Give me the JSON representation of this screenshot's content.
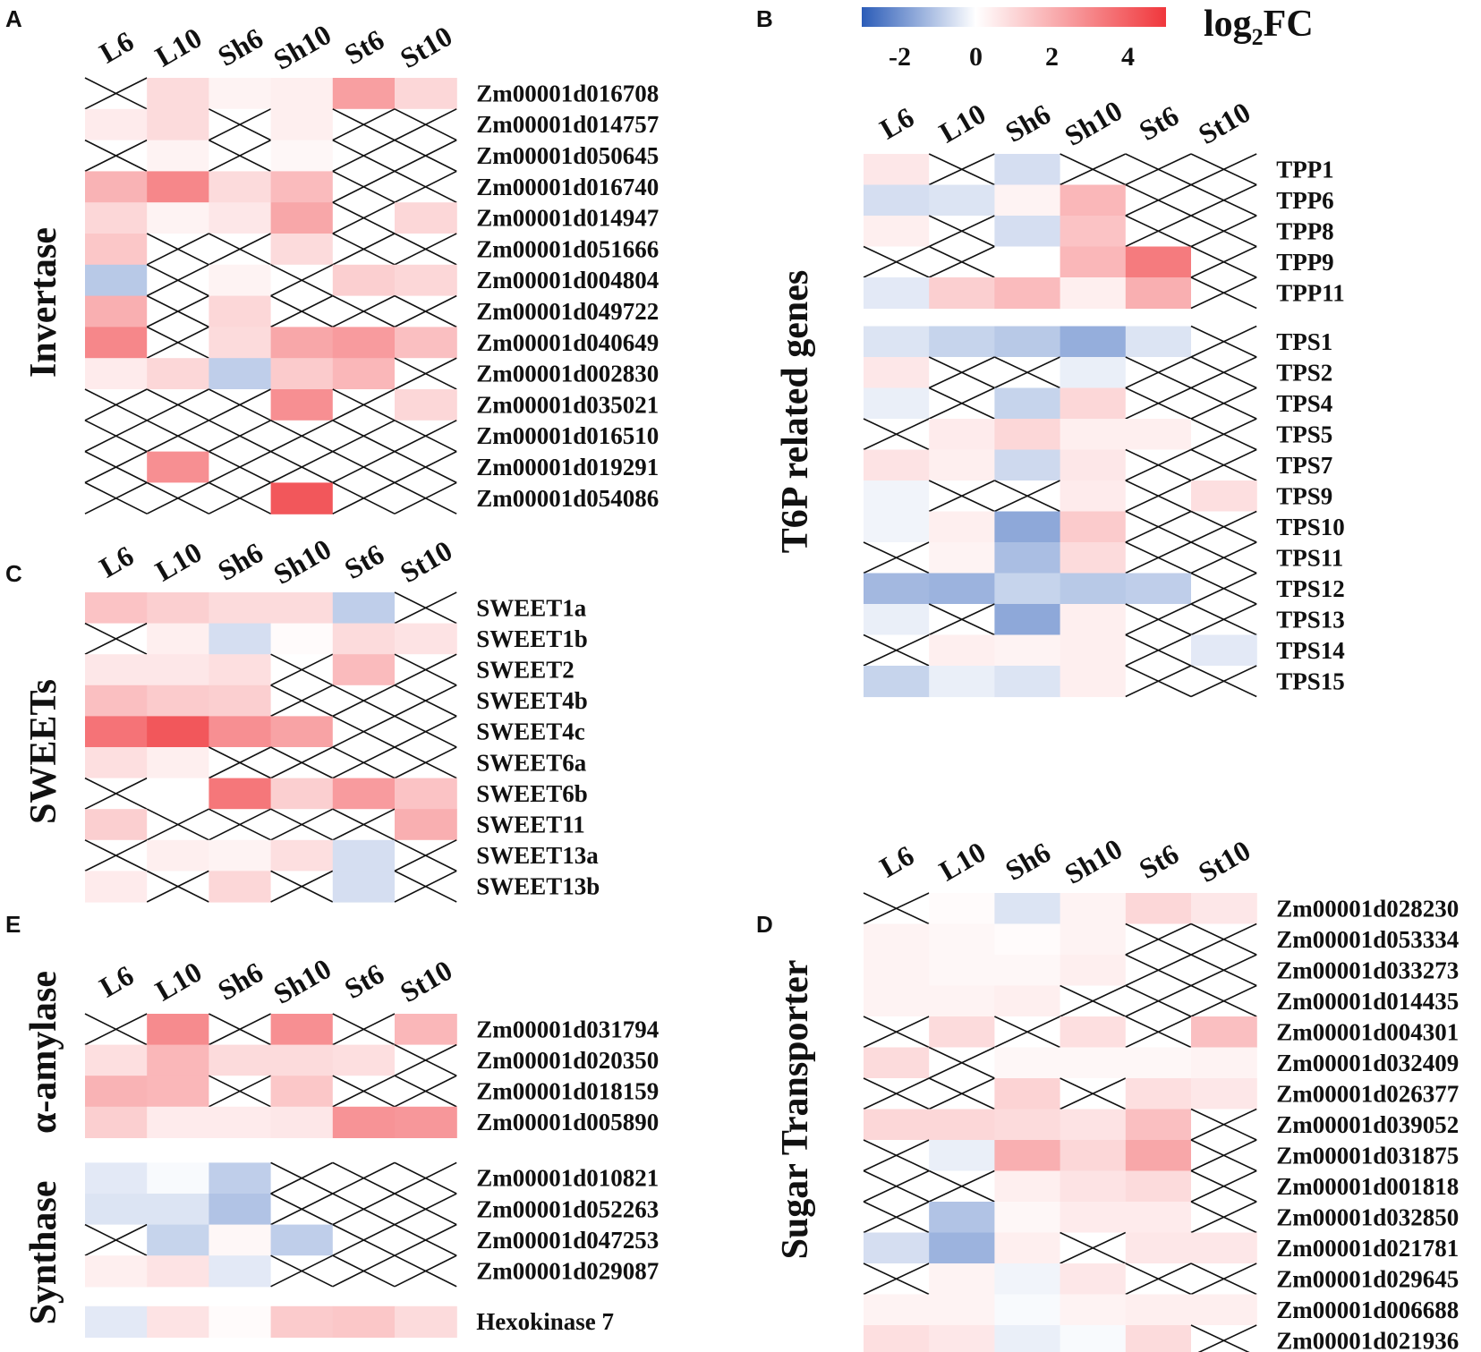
{
  "legend": {
    "title": "log",
    "title_sub": "2",
    "title_suffix": "FC",
    "ticks": [
      "-2",
      "0",
      "2",
      "4"
    ],
    "tick_values": [
      -2,
      0,
      2,
      4
    ],
    "range": [
      -3,
      5
    ],
    "colors": {
      "negative": "#2b5cb8",
      "zero": "#ffffff",
      "positive": "#f0373c"
    }
  },
  "chart_data": [
    {
      "type": "heatmap",
      "panel": "A",
      "title": "Invertase",
      "columns": [
        "L6",
        "L10",
        "Sh6",
        "Sh10",
        "St6",
        "St10"
      ],
      "groups": [
        {
          "rows": [
            "Zm00001d016708",
            "Zm00001d014757",
            "Zm00001d050645",
            "Zm00001d016740",
            "Zm00001d014947",
            "Zm00001d051666",
            "Zm00001d004804",
            "Zm00001d049722",
            "Zm00001d040649",
            "Zm00001d002830",
            "Zm00001d035021",
            "Zm00001d016510",
            "Zm00001d019291",
            "Zm00001d054086"
          ],
          "values": [
            [
              null,
              0.9,
              0.3,
              0.4,
              2.4,
              1.0
            ],
            [
              0.5,
              0.9,
              null,
              0.4,
              null,
              null
            ],
            [
              null,
              0.3,
              null,
              0.2,
              null,
              null
            ],
            [
              1.9,
              3.0,
              0.9,
              1.7,
              null,
              null
            ],
            [
              1.0,
              0.3,
              0.6,
              2.2,
              null,
              1.0
            ],
            [
              1.4,
              null,
              null,
              0.9,
              null,
              null
            ],
            [
              -1.0,
              null,
              0.3,
              null,
              1.2,
              1.0
            ],
            [
              2.0,
              null,
              1.0,
              null,
              null,
              null
            ],
            [
              3.0,
              null,
              0.9,
              2.2,
              2.5,
              1.6
            ],
            [
              0.5,
              1.0,
              -0.9,
              1.3,
              1.8,
              null
            ],
            [
              null,
              null,
              null,
              2.8,
              null,
              1.0
            ],
            [
              null,
              null,
              null,
              null,
              null,
              null
            ],
            [
              null,
              2.8,
              null,
              null,
              null,
              null
            ],
            [
              null,
              null,
              null,
              4.2,
              null,
              null
            ]
          ]
        }
      ]
    },
    {
      "type": "heatmap",
      "panel": "B",
      "title": "T6P related genes",
      "columns": [
        "L6",
        "L10",
        "Sh6",
        "Sh10",
        "St6",
        "St10"
      ],
      "groups": [
        {
          "rows": [
            "TPP1",
            "TPP6",
            "TPP8",
            "TPP9",
            "TPP11"
          ],
          "values": [
            [
              0.6,
              null,
              -0.6,
              null,
              null,
              null
            ],
            [
              -0.6,
              -0.5,
              0.3,
              1.8,
              null,
              null
            ],
            [
              0.4,
              null,
              -0.6,
              1.5,
              null,
              null
            ],
            [
              null,
              null,
              0.0,
              1.8,
              3.3,
              null
            ],
            [
              -0.4,
              1.2,
              1.7,
              0.4,
              2.0,
              null
            ]
          ]
        },
        {
          "rows": [
            "TPS1",
            "TPS2",
            "TPS4",
            "TPS5",
            "TPS7",
            "TPS9",
            "TPS10",
            "TPS11",
            "TPS12",
            "TPS13",
            "TPS14",
            "TPS15"
          ],
          "values": [
            [
              -0.5,
              -0.8,
              -1.0,
              -1.5,
              -0.5,
              null
            ],
            [
              0.6,
              null,
              null,
              -0.3,
              null,
              null
            ],
            [
              -0.3,
              null,
              -0.8,
              1.0,
              null,
              null
            ],
            [
              null,
              0.5,
              1.0,
              0.4,
              0.4,
              null
            ],
            [
              0.7,
              0.4,
              -0.7,
              0.6,
              null,
              null
            ],
            [
              -0.2,
              null,
              null,
              0.5,
              null,
              0.8
            ],
            [
              -0.2,
              0.4,
              -1.6,
              1.3,
              null,
              null
            ],
            [
              null,
              0.3,
              -1.2,
              0.9,
              null,
              null
            ],
            [
              -1.3,
              -1.4,
              -0.8,
              -1.0,
              -0.9,
              null
            ],
            [
              -0.3,
              null,
              -1.6,
              0.4,
              null,
              null
            ],
            [
              null,
              0.4,
              0.3,
              0.4,
              null,
              -0.4
            ],
            [
              -0.8,
              -0.3,
              -0.5,
              0.4,
              null,
              null
            ]
          ]
        }
      ]
    },
    {
      "type": "heatmap",
      "panel": "C",
      "title": "SWEETs",
      "columns": [
        "L6",
        "L10",
        "Sh6",
        "Sh10",
        "St6",
        "St10"
      ],
      "groups": [
        {
          "rows": [
            "SWEET1a",
            "SWEET1b",
            "SWEET2",
            "SWEET4b",
            "SWEET4c",
            "SWEET6a",
            "SWEET6b",
            "SWEET11",
            "SWEET13a",
            "SWEET13b"
          ],
          "values": [
            [
              1.5,
              1.2,
              0.9,
              0.9,
              -0.9,
              null
            ],
            [
              null,
              0.4,
              -0.6,
              0.1,
              0.9,
              0.7
            ],
            [
              0.6,
              0.6,
              0.8,
              null,
              1.7,
              null
            ],
            [
              1.6,
              1.3,
              1.2,
              null,
              null,
              null
            ],
            [
              3.5,
              4.2,
              2.8,
              2.3,
              null,
              null
            ],
            [
              0.8,
              0.4,
              null,
              null,
              null,
              null
            ],
            [
              null,
              0.0,
              3.4,
              1.2,
              2.5,
              1.5
            ],
            [
              1.2,
              null,
              null,
              null,
              null,
              2.0
            ],
            [
              null,
              0.4,
              0.3,
              0.8,
              -0.6,
              null
            ],
            [
              0.5,
              null,
              1.0,
              null,
              -0.6,
              null
            ]
          ]
        }
      ]
    },
    {
      "type": "heatmap",
      "panel": "E",
      "title": "α-amylase / Synthase",
      "columns": [
        "L6",
        "L10",
        "Sh6",
        "Sh10",
        "St6",
        "St10"
      ],
      "groups": [
        {
          "label": "α-amylase",
          "rows": [
            "Zm00001d031794",
            "Zm00001d020350",
            "Zm00001d018159",
            "Zm00001d005890"
          ],
          "values": [
            [
              null,
              2.9,
              null,
              2.8,
              null,
              1.8
            ],
            [
              0.8,
              1.8,
              0.9,
              0.9,
              0.8,
              null
            ],
            [
              1.9,
              1.8,
              null,
              1.4,
              null,
              null
            ],
            [
              1.2,
              0.5,
              0.5,
              0.6,
              2.7,
              2.6
            ]
          ]
        },
        {
          "label": "Synthase",
          "rows": [
            "Zm00001d010821",
            "Zm00001d052263",
            "Zm00001d047253",
            "Zm00001d029087"
          ],
          "values": [
            [
              -0.4,
              -0.1,
              -0.9,
              null,
              null,
              null
            ],
            [
              -0.5,
              -0.5,
              -1.1,
              null,
              null,
              null
            ],
            [
              null,
              -0.8,
              0.2,
              -0.9,
              null,
              null
            ],
            [
              0.4,
              0.7,
              -0.4,
              null,
              null,
              null
            ]
          ]
        },
        {
          "label": "",
          "rows": [
            "Hexokinase 7"
          ],
          "values": [
            [
              -0.4,
              0.7,
              0.1,
              1.3,
              1.4,
              0.9
            ]
          ]
        }
      ]
    },
    {
      "type": "heatmap",
      "panel": "D",
      "title": "Sugar Transporter",
      "columns": [
        "L6",
        "L10",
        "Sh6",
        "Sh10",
        "St6",
        "St10"
      ],
      "groups": [
        {
          "rows": [
            "Zm00001d028230",
            "Zm00001d053334",
            "Zm00001d033273",
            "Zm00001d014435",
            "Zm00001d004301",
            "Zm00001d032409",
            "Zm00001d026377",
            "Zm00001d039052",
            "Zm00001d031875",
            "Zm00001d001818",
            "Zm00001d032850",
            "Zm00001d021781",
            "Zm00001d029645",
            "Zm00001d006688",
            "Zm00001d021936"
          ],
          "values": [
            [
              null,
              0.1,
              -0.5,
              0.3,
              1.0,
              0.6
            ],
            [
              0.3,
              0.2,
              0.1,
              0.3,
              null,
              null
            ],
            [
              0.3,
              0.2,
              0.2,
              0.4,
              null,
              null
            ],
            [
              0.3,
              0.3,
              0.4,
              null,
              null,
              null
            ],
            [
              null,
              0.9,
              null,
              0.8,
              null,
              1.6
            ],
            [
              0.9,
              null,
              0.2,
              0.2,
              0.2,
              0.3
            ],
            [
              null,
              null,
              1.1,
              null,
              0.8,
              0.6
            ],
            [
              1.0,
              1.0,
              0.9,
              0.7,
              1.6,
              null
            ],
            [
              null,
              -0.3,
              2.0,
              1.0,
              2.2,
              null
            ],
            [
              null,
              null,
              0.4,
              0.7,
              0.9,
              null
            ],
            [
              null,
              -1.1,
              0.2,
              0.5,
              0.5,
              null
            ],
            [
              -0.6,
              -1.4,
              0.4,
              null,
              0.6,
              0.6
            ],
            [
              null,
              0.3,
              -0.2,
              0.6,
              null,
              null
            ],
            [
              0.3,
              0.3,
              -0.1,
              0.3,
              0.4,
              0.4
            ],
            [
              0.8,
              0.6,
              -0.3,
              -0.1,
              0.9,
              null
            ]
          ]
        }
      ]
    }
  ]
}
